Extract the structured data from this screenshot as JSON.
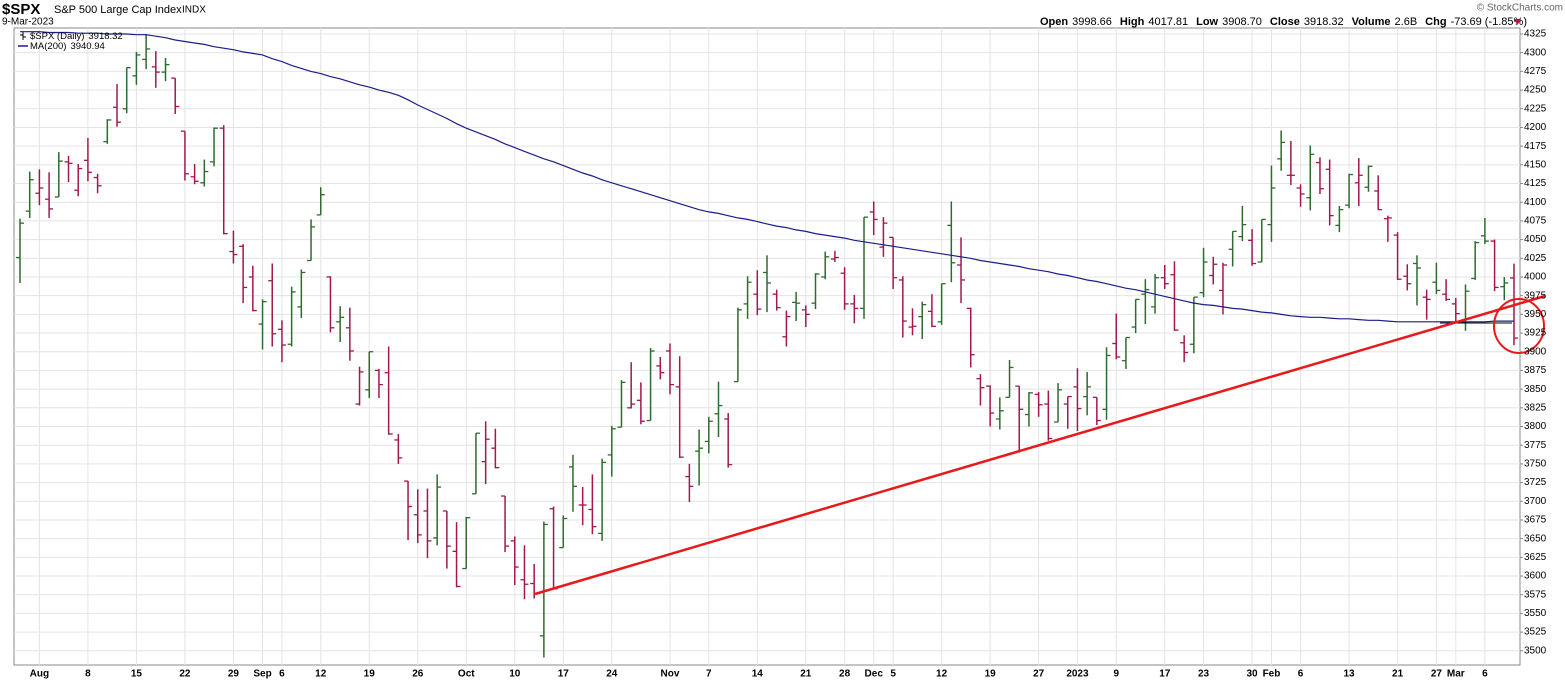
{
  "header": {
    "symbol": "$SPX",
    "name": "S&P 500 Large Cap Index",
    "exchange": "INDX",
    "date": "9-Mar-2023",
    "copyright": "© StockCharts.com",
    "quote": [
      {
        "label": "Open",
        "value": "3998.66"
      },
      {
        "label": "High",
        "value": "4017.81"
      },
      {
        "label": "Low",
        "value": "3908.70"
      },
      {
        "label": "Close",
        "value": "3918.32"
      },
      {
        "label": "Volume",
        "value": "2.6B"
      },
      {
        "label": "Chg",
        "value": "-73.69 (-1.85%)"
      }
    ]
  },
  "chart_data": {
    "type": "ohlc",
    "grid": true,
    "categories": [
      null,
      null,
      "Aug",
      null,
      null,
      null,
      null,
      "8",
      null,
      null,
      null,
      null,
      "15",
      null,
      null,
      null,
      null,
      "22",
      null,
      null,
      null,
      null,
      "29",
      null,
      null,
      "Sep",
      null,
      "6",
      null,
      null,
      null,
      "12",
      null,
      null,
      null,
      null,
      "19",
      null,
      null,
      null,
      null,
      "26",
      null,
      null,
      null,
      null,
      "Oct",
      null,
      null,
      null,
      null,
      "10",
      null,
      null,
      null,
      null,
      "17",
      null,
      null,
      null,
      null,
      "24",
      null,
      null,
      null,
      null,
      null,
      "Nov",
      null,
      null,
      null,
      "7",
      null,
      null,
      null,
      null,
      "14",
      null,
      null,
      null,
      null,
      "21",
      null,
      null,
      null,
      "28",
      null,
      null,
      "Dec",
      null,
      "5",
      null,
      null,
      null,
      null,
      "12",
      null,
      null,
      null,
      null,
      "19",
      null,
      null,
      null,
      null,
      "27",
      null,
      null,
      null,
      "2023",
      null,
      null,
      null,
      "9",
      null,
      null,
      null,
      null,
      "17",
      null,
      null,
      null,
      "23",
      null,
      null,
      null,
      null,
      "30",
      null,
      "Feb",
      null,
      null,
      "6",
      null,
      null,
      null,
      null,
      "13",
      null,
      null,
      null,
      null,
      "21",
      null,
      null,
      null,
      "27",
      null,
      "Mar",
      null,
      null,
      "6",
      null,
      null,
      null
    ],
    "ylim": [
      3481,
      4333
    ],
    "yticks": [
      3500,
      3525,
      3550,
      3575,
      3600,
      3625,
      3650,
      3675,
      3700,
      3725,
      3750,
      3775,
      3800,
      3825,
      3850,
      3875,
      3900,
      3925,
      3950,
      3975,
      4000,
      4025,
      4050,
      4075,
      4100,
      4125,
      4150,
      4175,
      4200,
      4225,
      4250,
      4275,
      4300,
      4325
    ],
    "series": [
      {
        "name": "$SPX (Daily)",
        "legend_value": "3918.32",
        "up_color": "#2e6b2e",
        "down_color": "#a3174d",
        "open": [
          4026,
          4088,
          4112,
          4104,
          4107,
          4154,
          4116,
          4156,
          4133,
          4181,
          4227,
          4225,
          4269,
          4291,
          4281,
          4274,
          4266,
          4195,
          4134,
          4126,
          4154,
          4199,
          4034,
          4041,
          4000,
          3937,
          3995,
          3930,
          3910,
          3960,
          4022,
          4083,
          4000,
          3940,
          3932,
          3830,
          3849,
          3875,
          3872,
          3782,
          3727,
          3682,
          3687,
          3651,
          3687,
          3633,
          3610,
          3710,
          3753,
          3771,
          3707,
          3647,
          3595,
          3590,
          3520,
          3690,
          3638,
          3746,
          3695,
          3689,
          3657,
          3762,
          3799,
          3825,
          3835,
          3808,
          3881,
          3901,
          3853,
          3733,
          3767,
          3780,
          3817,
          3810,
          3860,
          3964,
          3977,
          4006,
          3977,
          3920,
          3966,
          3956,
          3965,
          4000,
          4024,
          4005,
          3964,
          3958,
          4087,
          4040,
          4053,
          3996,
          3933,
          3947,
          3954,
          3940,
          4069,
          4016,
          3958,
          3864,
          3854,
          3810,
          3839,
          3854,
          3816,
          3843,
          3830,
          3806,
          3830,
          3853,
          3840,
          3839,
          3823,
          3911,
          3888,
          3933,
          3977,
          3960,
          3999,
          4003,
          3912,
          3910,
          3979,
          4002,
          3982,
          4037,
          4054,
          4049,
          4020,
          4070,
          4158,
          4136,
          4119,
          4106,
          4153,
          4144,
          4069,
          4096,
          4126,
          4120,
          4115,
          4078,
          4056,
          4001,
          4018,
          3973,
          3993,
          3977,
          3964,
          3939,
          3998,
          4055,
          4048,
          3987,
          3998.66
        ],
        "high": [
          4078,
          4141,
          4144,
          4140,
          4167,
          4162,
          4151,
          4186,
          4138,
          4211,
          4258,
          4280,
          4301,
          4325,
          4302,
          4293,
          4266,
          4195,
          4151,
          4157,
          4200,
          4203,
          4062,
          4044,
          4015,
          3970,
          4018,
          3942,
          3987,
          4010,
          4077,
          4120,
          4001,
          3961,
          3959,
          3880,
          3900,
          3877,
          3907,
          3790,
          3727,
          3716,
          3717,
          3736,
          3687,
          3672,
          3679,
          3791,
          3807,
          3797,
          3707,
          3653,
          3641,
          3616,
          3673,
          3693,
          3681,
          3762,
          3719,
          3736,
          3757,
          3801,
          3862,
          3886,
          3859,
          3905,
          3893,
          3911,
          3894,
          3750,
          3796,
          3813,
          3860,
          3818,
          3959,
          4001,
          4009,
          4029,
          3983,
          3955,
          3980,
          3962,
          4005,
          4034,
          4035,
          4013,
          3976,
          4080,
          4101,
          4080,
          4053,
          4001,
          3958,
          3967,
          3977,
          3991,
          4101,
          4053,
          3959,
          3870,
          3855,
          3839,
          3889,
          3854,
          3846,
          3846,
          3848,
          3858,
          3840,
          3878,
          3873,
          3839,
          3906,
          3951,
          3919,
          3970,
          3997,
          4004,
          4016,
          4021,
          3922,
          3973,
          4039,
          4027,
          4019,
          4061,
          4095,
          4064,
          4077,
          4149,
          4196,
          4182,
          4124,
          4176,
          4160,
          4157,
          4095,
          4138,
          4159,
          4149,
          4136,
          4082,
          4060,
          4017,
          4029,
          3983,
          4019,
          3997,
          3972,
          3990,
          4048,
          4079,
          4050,
          4000,
          4017.81
        ],
        "low": [
          3992,
          4079,
          4096,
          4079,
          4107,
          4127,
          4108,
          4128,
          4112,
          4178,
          4201,
          4219,
          4257,
          4278,
          4253,
          4262,
          4218,
          4129,
          4124,
          4121,
          4148,
          4057,
          4018,
          3965,
          3954,
          3903,
          3907,
          3886,
          3907,
          3945,
          4022,
          4083,
          3926,
          3913,
          3888,
          3828,
          3838,
          3838,
          3789,
          3750,
          3648,
          3644,
          3624,
          3641,
          3610,
          3585,
          3610,
          3710,
          3723,
          3744,
          3632,
          3588,
          3569,
          3570,
          3491,
          3582,
          3638,
          3686,
          3668,
          3656,
          3647,
          3733,
          3799,
          3824,
          3803,
          3808,
          3863,
          3843,
          3758,
          3699,
          3721,
          3764,
          3786,
          3745,
          3860,
          3944,
          3949,
          3953,
          3955,
          3907,
          3941,
          3933,
          3957,
          3997,
          4020,
          3956,
          3938,
          3944,
          4056,
          4027,
          3984,
          3919,
          3922,
          3917,
          3933,
          3936,
          3993,
          3965,
          3879,
          3828,
          3800,
          3796,
          3839,
          3765,
          3800,
          3813,
          3781,
          3806,
          3797,
          3794,
          3815,
          3802,
          3809,
          3890,
          3877,
          3925,
          3937,
          3951,
          3984,
          3928,
          3886,
          3898,
          3973,
          3990,
          3950,
          4014,
          4048,
          4015,
          4020,
          4047,
          4142,
          4123,
          4094,
          4089,
          4111,
          4069,
          4060,
          4092,
          4095,
          4114,
          4090,
          4047,
          3996,
          3982,
          3962,
          3943,
          3977,
          3968,
          3940,
          3928,
          3996,
          4044,
          3981,
          3969,
          3908.7
        ],
        "close": [
          4072,
          4130,
          4119,
          4091,
          4155,
          4152,
          4145,
          4140,
          4122,
          4210,
          4207,
          4280,
          4297,
          4305,
          4274,
          4284,
          4228,
          4138,
          4128,
          4141,
          4199,
          4058,
          4030,
          3986,
          3955,
          3967,
          3924,
          3909,
          3980,
          4006,
          4067,
          4110,
          3932,
          3946,
          3901,
          3873,
          3900,
          3856,
          3790,
          3758,
          3693,
          3655,
          3647,
          3719,
          3640,
          3586,
          3678,
          3791,
          3783,
          3745,
          3640,
          3612,
          3589,
          3577,
          3669,
          3583,
          3677,
          3720,
          3695,
          3666,
          3752,
          3797,
          3859,
          3830,
          3807,
          3901,
          3872,
          3856,
          3759,
          3720,
          3771,
          3807,
          3828,
          3749,
          3956,
          3993,
          3957,
          3992,
          3959,
          3947,
          3965,
          3950,
          4004,
          4027,
          4026,
          3964,
          3958,
          4080,
          4077,
          4072,
          3999,
          3941,
          3934,
          3963,
          3934,
          3991,
          4019,
          3996,
          3896,
          3852,
          3818,
          3821,
          3879,
          3823,
          3845,
          3829,
          3784,
          3849,
          3840,
          3824,
          3853,
          3808,
          3895,
          3893,
          3919,
          3970,
          3983,
          3999,
          3991,
          3929,
          3899,
          3973,
          4020,
          4017,
          4016,
          4061,
          4070,
          4018,
          4077,
          4119,
          4180,
          4136,
          4111,
          4164,
          4118,
          4082,
          4090,
          4137,
          4136,
          4148,
          4090,
          4079,
          3997,
          3991,
          4012,
          3970,
          3982,
          3970,
          3951,
          3981,
          4046,
          4048,
          3986,
          3992,
          3918.32
        ]
      },
      {
        "name": "MA(200)",
        "legend_value": "3940.94",
        "color": "#1c1c8a",
        "values": [
          4328,
          4328,
          4328,
          4327,
          4327,
          4327,
          4326,
          4326,
          4326,
          4325,
          4325,
          4325,
          4324,
          4324,
          4322,
          4320,
          4317,
          4315,
          4313,
          4311,
          4308,
          4306,
          4304,
          4301,
          4299,
          4297,
          4292,
          4288,
          4283,
          4279,
          4275,
          4272,
          4268,
          4265,
          4261,
          4257,
          4254,
          4250,
          4247,
          4243,
          4237,
          4230,
          4224,
          4218,
          4212,
          4205,
          4199,
          4194,
          4189,
          4184,
          4178,
          4173,
          4168,
          4163,
          4158,
          4154,
          4149,
          4144,
          4139,
          4135,
          4130,
          4126,
          4122,
          4118,
          4114,
          4110,
          4106,
          4102,
          4098,
          4094,
          4090,
          4087,
          4085,
          4082,
          4079,
          4077,
          4074,
          4071,
          4068,
          4066,
          4063,
          4061,
          4058,
          4056,
          4054,
          4052,
          4049,
          4047,
          4045,
          4043,
          4041,
          4039,
          4037,
          4035,
          4033,
          4031,
          4029,
          4027,
          4025,
          4022,
          4020,
          4018,
          4016,
          4014,
          4011,
          4009,
          4007,
          4004,
          4002,
          3999,
          3996,
          3994,
          3991,
          3988,
          3985,
          3983,
          3980,
          3977,
          3974,
          3971,
          3968,
          3965,
          3963,
          3962,
          3960,
          3958,
          3957,
          3955,
          3953,
          3952,
          3950,
          3948,
          3947,
          3946,
          3946,
          3945,
          3944,
          3944,
          3943,
          3942,
          3942,
          3941,
          3940,
          3940,
          3940,
          3940,
          3940,
          3940,
          3940,
          3940,
          3940,
          3940,
          3941,
          3941,
          3940.94
        ]
      }
    ]
  }
}
